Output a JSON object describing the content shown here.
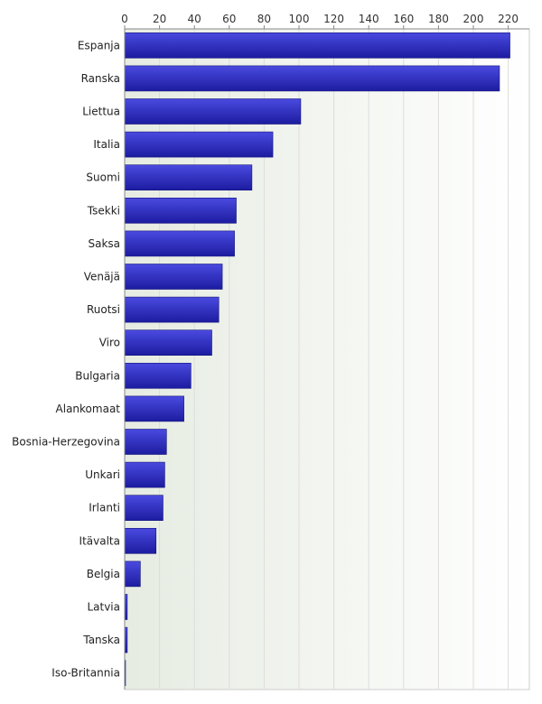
{
  "chart_data": {
    "type": "bar",
    "orientation": "horizontal",
    "title": "",
    "xlabel": "",
    "ylabel": "",
    "xlim": [
      0,
      232
    ],
    "x_ticks": [
      0,
      20,
      40,
      60,
      80,
      100,
      120,
      140,
      160,
      180,
      200,
      220
    ],
    "tick_position": "top",
    "grid": true,
    "categories": [
      "Espanja",
      "Ranska",
      "Liettua",
      "Italia",
      "Suomi",
      "Tsekki",
      "Saksa",
      "Venäjä",
      "Ruotsi",
      "Viro",
      "Bulgaria",
      "Alankomaat",
      "Bosnia-Herzegovina",
      "Unkari",
      "Irlanti",
      "Itävalta",
      "Belgia",
      "Latvia",
      "Tanska",
      "Iso-Britannia"
    ],
    "values": [
      221,
      215,
      101,
      85,
      73,
      64,
      63,
      56,
      54,
      50,
      38,
      34,
      24,
      23,
      22,
      18,
      9,
      1.5,
      1.5,
      0.5
    ],
    "colors": {
      "bar_light": "#4a4ae0",
      "bar_dark": "#1c1ca0",
      "bar_stroke": "#14147a",
      "plot_bg_left": "#e6ece2",
      "plot_bg_right": "#ffffff",
      "grid": "#dddddd",
      "axis": "#888888"
    }
  }
}
